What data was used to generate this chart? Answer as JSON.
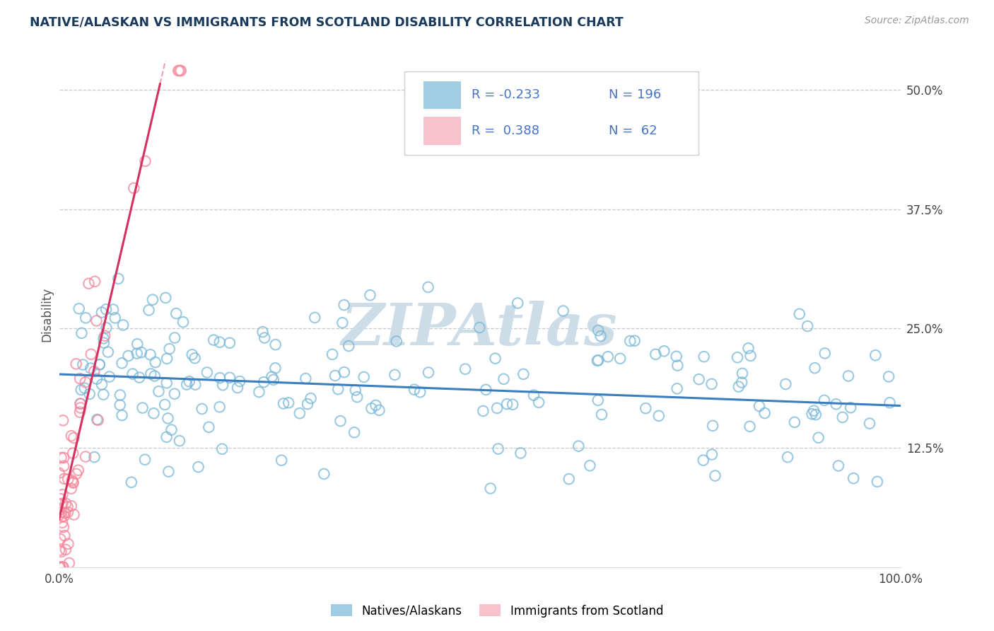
{
  "title": "NATIVE/ALASKAN VS IMMIGRANTS FROM SCOTLAND DISABILITY CORRELATION CHART",
  "source_text": "Source: ZipAtlas.com",
  "ylabel": "Disability",
  "xlim": [
    0,
    100
  ],
  "ylim": [
    0,
    53
  ],
  "ytick_vals": [
    12.5,
    25.0,
    37.5,
    50.0
  ],
  "ytick_labels": [
    "12.5%",
    "25.0%",
    "37.5%",
    "50.0%"
  ],
  "xtick_vals": [
    0,
    100
  ],
  "xtick_labels": [
    "0.0%",
    "100.0%"
  ],
  "blue_R": -0.233,
  "blue_N": 196,
  "pink_R": 0.388,
  "pink_N": 62,
  "blue_color": "#7ab8d9",
  "pink_color": "#f4869a",
  "blue_line_color": "#3a7ebf",
  "pink_line_color": "#d63060",
  "pink_dash_color": "#e8a0b0",
  "watermark": "ZIPAtlas",
  "watermark_color": "#ccdde8",
  "legend_label_blue": "Natives/Alaskans",
  "legend_label_pink": "Immigrants from Scotland",
  "title_color": "#1a3a5c",
  "legend_text_color": "#4472c4",
  "blue_intercept": 20.2,
  "blue_slope": -0.033,
  "pink_intercept": 5.0,
  "pink_slope": 3.8,
  "pink_line_x_end": 12.0,
  "pink_dash_x_end": 25.0
}
